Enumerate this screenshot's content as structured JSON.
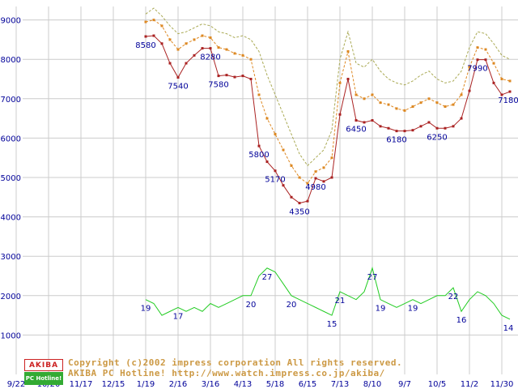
{
  "chart_data": {
    "type": "line",
    "title": "",
    "description": "Weekly price survey graph: highest / average / lowest price (yen) and number of shops (plotted x100), data points weekly starting 1/19",
    "grid": true,
    "legend": "none",
    "x_axis": {
      "tick_labels": [
        "9/22",
        "10/20",
        "11/17",
        "12/15",
        "1/19",
        "2/16",
        "3/16",
        "4/13",
        "5/18",
        "6/15",
        "7/13",
        "8/10",
        "9/7",
        "10/5",
        "11/2",
        "11/30"
      ],
      "data_start_tick": "1/19"
    },
    "y_axis": {
      "tick_labels": [
        "1000",
        "2000",
        "3000",
        "4000",
        "5000",
        "6000",
        "7000",
        "8000",
        "9000"
      ],
      "min": 0,
      "max": 9300
    },
    "series": [
      {
        "name": "highest-price",
        "color": "#aaaa55",
        "style": "dashed",
        "markers": false,
        "value_scale": 1,
        "values": [
          9150,
          9300,
          9100,
          8850,
          8650,
          8700,
          8800,
          8900,
          8850,
          8700,
          8650,
          8550,
          8600,
          8500,
          8200,
          7600,
          7100,
          6600,
          6100,
          5600,
          5300,
          5500,
          5700,
          6200,
          8000,
          8700,
          7900,
          7800,
          8000,
          7700,
          7500,
          7400,
          7350,
          7450,
          7600,
          7700,
          7500,
          7400,
          7450,
          7700,
          8300,
          8700,
          8650,
          8400,
          8100,
          8000
        ]
      },
      {
        "name": "average-price",
        "color": "#dd8822",
        "style": "dashed",
        "markers": true,
        "value_scale": 1,
        "values": [
          8950,
          9000,
          8850,
          8500,
          8250,
          8400,
          8500,
          8600,
          8550,
          8300,
          8250,
          8150,
          8100,
          8000,
          7100,
          6500,
          6100,
          5700,
          5300,
          5000,
          4850,
          5150,
          5250,
          5500,
          7400,
          8200,
          7100,
          7000,
          7100,
          6900,
          6850,
          6750,
          6700,
          6800,
          6900,
          7000,
          6900,
          6800,
          6850,
          7100,
          7800,
          8300,
          8250,
          7900,
          7500,
          7450
        ]
      },
      {
        "name": "lowest-price",
        "color": "#aa2222",
        "style": "solid",
        "markers": true,
        "value_scale": 1,
        "values": [
          8580,
          8600,
          8400,
          7900,
          7540,
          7900,
          8100,
          8280,
          8280,
          7580,
          7600,
          7550,
          7580,
          7500,
          5800,
          5400,
          5170,
          4800,
          4500,
          4350,
          4400,
          4980,
          4900,
          5000,
          6600,
          7500,
          6450,
          6400,
          6450,
          6300,
          6250,
          6180,
          6180,
          6200,
          6300,
          6400,
          6250,
          6250,
          6300,
          6500,
          7200,
          7990,
          7990,
          7400,
          7100,
          7180
        ]
      },
      {
        "name": "shop-count",
        "color": "#22cc22",
        "style": "solid",
        "markers": false,
        "value_scale": 100,
        "values": [
          19,
          18,
          15,
          16,
          17,
          16,
          17,
          16,
          18,
          17,
          18,
          19,
          20,
          20,
          25,
          27,
          26,
          23,
          20,
          19,
          18,
          17,
          16,
          15,
          21,
          20,
          19,
          21,
          27,
          19,
          18,
          17,
          18,
          19,
          18,
          19,
          20,
          20,
          22,
          16,
          19,
          21,
          20,
          18,
          15,
          14
        ]
      }
    ],
    "annotations": {
      "price_labels": [
        {
          "i": 0,
          "v": 8580,
          "t": "8580"
        },
        {
          "i": 4,
          "v": 7540,
          "t": "7540"
        },
        {
          "i": 8,
          "v": 8280,
          "t": "8280"
        },
        {
          "i": 9,
          "v": 7580,
          "t": "7580"
        },
        {
          "i": 14,
          "v": 5800,
          "t": "5800"
        },
        {
          "i": 16,
          "v": 5170,
          "t": "5170"
        },
        {
          "i": 19,
          "v": 4350,
          "t": "4350"
        },
        {
          "i": 21,
          "v": 4980,
          "t": "4980"
        },
        {
          "i": 26,
          "v": 6450,
          "t": "6450"
        },
        {
          "i": 31,
          "v": 6180,
          "t": "6180"
        },
        {
          "i": 36,
          "v": 6250,
          "t": "6250"
        },
        {
          "i": 41,
          "v": 7990,
          "t": "7990"
        },
        {
          "i": 45,
          "v": 7180,
          "t": "7180"
        }
      ],
      "count_labels": [
        {
          "i": 0,
          "c": 19,
          "t": "19"
        },
        {
          "i": 4,
          "c": 17,
          "t": "17"
        },
        {
          "i": 13,
          "c": 20,
          "t": "20"
        },
        {
          "i": 15,
          "c": 27,
          "t": "27"
        },
        {
          "i": 18,
          "c": 20,
          "t": "20"
        },
        {
          "i": 23,
          "c": 15,
          "t": "15"
        },
        {
          "i": 24,
          "c": 21,
          "t": "21"
        },
        {
          "i": 28,
          "c": 27,
          "t": "27"
        },
        {
          "i": 29,
          "c": 19,
          "t": "19"
        },
        {
          "i": 33,
          "c": 19,
          "t": "19"
        },
        {
          "i": 38,
          "c": 22,
          "t": "22"
        },
        {
          "i": 39,
          "c": 16,
          "t": "16"
        },
        {
          "i": 45,
          "c": 14,
          "t": "14"
        }
      ]
    }
  },
  "footer": {
    "copyright": "Copyright (c)2002 impress corporation All rights reserved.",
    "site_name": "AKIBA PC Hotline!",
    "url": "http://www.watch.impress.co.jp/akiba/",
    "logo": {
      "line1": "AKIBA",
      "line2": "PC Hotline!"
    }
  },
  "colors": {
    "background": "#ffffff",
    "grid": "#cccccc",
    "axis_text": "#000099",
    "annotation_text": "#000099",
    "footer_text": "#cc9944",
    "logo_red": "#cc2222",
    "logo_green": "#33aa33"
  }
}
